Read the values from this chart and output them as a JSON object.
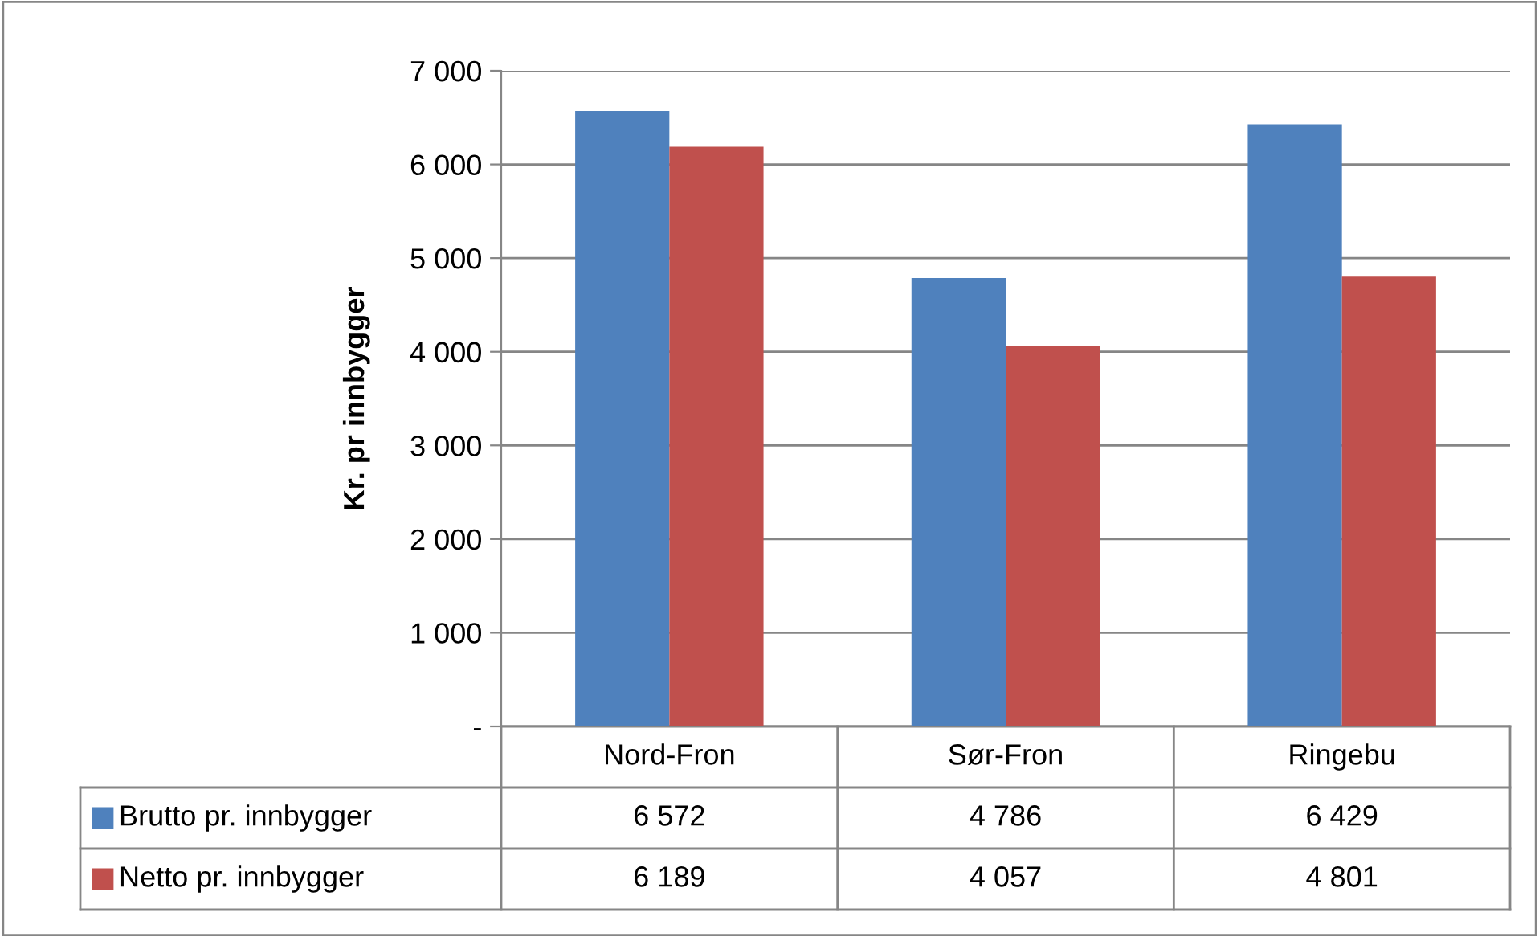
{
  "chart_data": {
    "type": "bar",
    "ylabel": "Kr. pr innbygger",
    "categories": [
      "Nord-Fron",
      "Sør-Fron",
      "Ringebu"
    ],
    "series": [
      {
        "name": "Brutto pr. innbygger",
        "color": "#4f81bd",
        "values": [
          6572,
          4786,
          6429
        ],
        "value_labels": [
          "6 572",
          "4 786",
          "6 429"
        ]
      },
      {
        "name": "Netto pr. innbygger",
        "color": "#c0504d",
        "values": [
          6189,
          4057,
          4801
        ],
        "value_labels": [
          "6 189",
          "4 057",
          "4 801"
        ]
      }
    ],
    "ylim": [
      0,
      7000
    ],
    "yticks": [
      {
        "value": 0,
        "label": "-"
      },
      {
        "value": 1000,
        "label": "1 000"
      },
      {
        "value": 2000,
        "label": "2 000"
      },
      {
        "value": 3000,
        "label": "3 000"
      },
      {
        "value": 4000,
        "label": "4 000"
      },
      {
        "value": 5000,
        "label": "5 000"
      },
      {
        "value": 6000,
        "label": "6 000"
      },
      {
        "value": 7000,
        "label": "7 000"
      }
    ],
    "grid": "y",
    "legend": "bottom left"
  }
}
